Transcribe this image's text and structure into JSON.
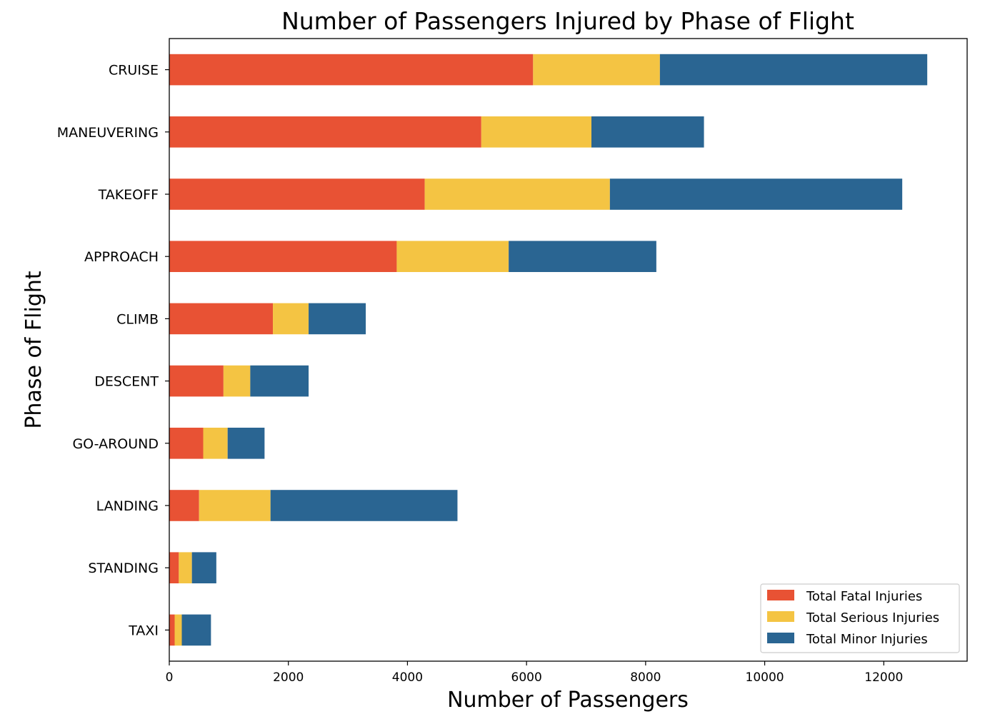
{
  "chart_data": {
    "type": "bar",
    "orientation": "horizontal",
    "stacked": true,
    "title": "Number of Passengers Injured by Phase of Flight",
    "xlabel": "Number of Passengers",
    "ylabel": "Phase of Flight",
    "xlim": [
      0,
      13400
    ],
    "xticks": [
      0,
      2000,
      4000,
      6000,
      8000,
      10000,
      12000
    ],
    "grid": false,
    "legend_position": "lower-right",
    "categories": [
      "CRUISE",
      "MANEUVERING",
      "TAKEOFF",
      "APPROACH",
      "CLIMB",
      "DESCENT",
      "GO-AROUND",
      "LANDING",
      "STANDING",
      "TAXI"
    ],
    "series": [
      {
        "name": "Total Fatal Injuries",
        "color": "#e85234",
        "values": [
          6110,
          5240,
          4290,
          3820,
          1740,
          910,
          570,
          500,
          160,
          90
        ]
      },
      {
        "name": "Total Serious Injuries",
        "color": "#f4c443",
        "values": [
          2130,
          1850,
          3110,
          1880,
          600,
          450,
          410,
          1200,
          220,
          120
        ]
      },
      {
        "name": "Total Minor Injuries",
        "color": "#2a6592",
        "values": [
          4490,
          1890,
          4910,
          2480,
          960,
          980,
          620,
          3140,
          410,
          490
        ]
      }
    ]
  }
}
